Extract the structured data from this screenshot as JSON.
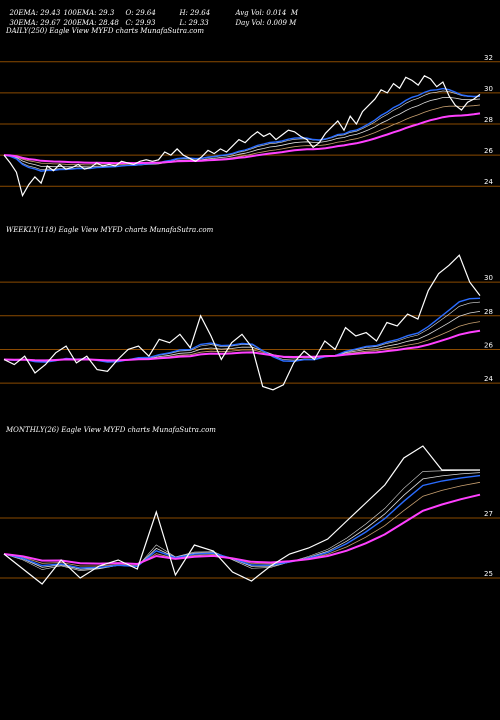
{
  "header": {
    "row1": [
      "20EMA: 29.43",
      "100EMA: 29.3",
      "O: 29.64",
      "H: 29.64",
      "Avg Vol: 0.014  M"
    ],
    "row2": [
      "30EMA: 29.67",
      "200EMA: 28.48",
      "C: 29.93",
      "L: 29.33",
      "Day Vol: 0.009 M"
    ]
  },
  "colors": {
    "background": "#000000",
    "gridline": "#8a4a00",
    "price": "#ffffff",
    "ema_short": "#dcdcdc",
    "ema_mid": "#c8a070",
    "ema_blue": "#2a6cff",
    "ema_long": "#ff40ff"
  },
  "chart_data": [
    {
      "type": "line",
      "title": "DAILY(250) Eagle  View  MYFD charts MunafaSutra.com",
      "ylim": [
        22.6,
        33.4
      ],
      "gridlines": [
        32,
        30,
        28,
        26,
        24
      ],
      "ticks": [
        "32",
        "30",
        "28",
        "26",
        "24"
      ],
      "series": [
        {
          "values": [
            26.0,
            25.5,
            24.9,
            23.4,
            24.1,
            24.6,
            24.2,
            25.3,
            25.0,
            25.4,
            25.1,
            25.2,
            25.4,
            25.1,
            25.2,
            25.5,
            25.3,
            25.4,
            25.3,
            25.6,
            25.5,
            25.4,
            25.6,
            25.7,
            25.6,
            25.7,
            26.2,
            26.0,
            26.4,
            26.0,
            25.8,
            25.6,
            25.9,
            26.3,
            26.1,
            26.4,
            26.2,
            26.6,
            27.0,
            26.8,
            27.2,
            27.5,
            27.2,
            27.4,
            27.0,
            27.3,
            27.6,
            27.5,
            27.2,
            27.0,
            26.5,
            26.8,
            27.4,
            27.8,
            28.2,
            27.6,
            28.5,
            28.0,
            28.8,
            29.2,
            29.6,
            30.2,
            30.0,
            30.6,
            30.3,
            31.0,
            30.8,
            30.5,
            31.1,
            30.9,
            30.4,
            30.7,
            29.8,
            29.2,
            28.9,
            29.4,
            29.6,
            29.9
          ]
        }
      ]
    },
    {
      "type": "line",
      "title": "WEEKLY(118) Eagle  View  MYFD charts MunafaSutra.com",
      "ylim": [
        22.7,
        32.5
      ],
      "gridlines": [
        30,
        28,
        26,
        24
      ],
      "ticks": [
        "30",
        "28",
        "26",
        "24"
      ],
      "series": [
        {
          "values": [
            25.4,
            25.1,
            25.6,
            24.6,
            25.1,
            25.8,
            26.2,
            25.2,
            25.6,
            24.8,
            24.7,
            25.4,
            26.0,
            26.2,
            25.6,
            26.6,
            26.4,
            26.9,
            26.1,
            28.0,
            26.8,
            25.4,
            26.4,
            26.9,
            26.1,
            23.8,
            23.6,
            23.9,
            25.2,
            25.9,
            25.4,
            26.5,
            26.0,
            27.3,
            26.8,
            27.0,
            26.5,
            27.6,
            27.4,
            28.1,
            27.8,
            29.5,
            30.5,
            31.0,
            31.6,
            30.0,
            29.2
          ]
        }
      ]
    },
    {
      "type": "line",
      "title": "MONTHLY(26) Eagle  View  MYFD charts MunafaSutra.com",
      "ylim": [
        24.0,
        29.6
      ],
      "gridlines": [
        27,
        25
      ],
      "ticks": [
        "27",
        "25"
      ],
      "series": [
        {
          "values": [
            25.8,
            25.3,
            24.8,
            25.6,
            25.0,
            25.4,
            25.6,
            25.3,
            27.2,
            25.1,
            26.1,
            25.9,
            25.2,
            24.9,
            25.4,
            25.8,
            26.0,
            26.3,
            26.9,
            27.5,
            28.1,
            29.0,
            29.4,
            28.6,
            28.6,
            28.6
          ]
        }
      ]
    }
  ]
}
